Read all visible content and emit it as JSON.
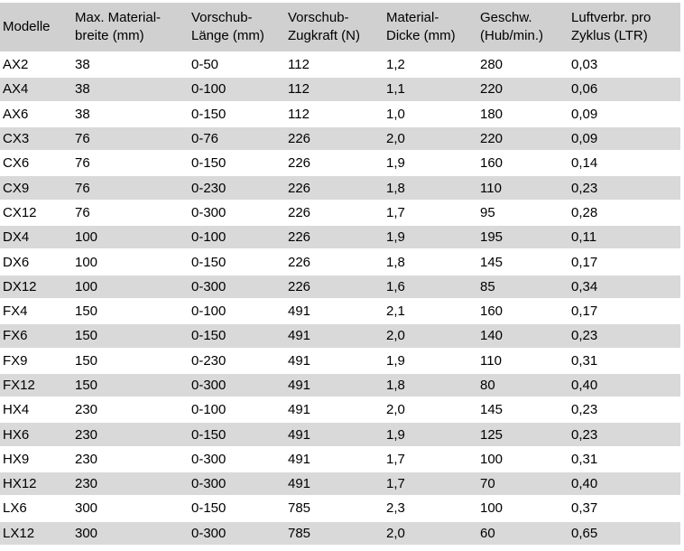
{
  "table": {
    "headers": [
      [
        "Modelle"
      ],
      [
        "Max. Material-",
        "breite (mm)"
      ],
      [
        "Vorschub-",
        "Länge (mm)"
      ],
      [
        "Vorschub-",
        "Zugkraft (N)"
      ],
      [
        "Material-",
        "Dicke (mm)"
      ],
      [
        "Geschw.",
        "(Hub/min.)"
      ],
      [
        "Luftverbr. pro",
        "Zyklus (LTR)"
      ]
    ],
    "rows": [
      [
        "AX2",
        "38",
        "0-50",
        "112",
        "1,2",
        "280",
        "0,03"
      ],
      [
        "AX4",
        "38",
        "0-100",
        "112",
        "1,1",
        "220",
        "0,06"
      ],
      [
        "AX6",
        "38",
        "0-150",
        "112",
        "1,0",
        "180",
        "0,09"
      ],
      [
        "CX3",
        "76",
        "0-76",
        "226",
        "2,0",
        "220",
        "0,09"
      ],
      [
        "CX6",
        "76",
        "0-150",
        "226",
        "1,9",
        "160",
        "0,14"
      ],
      [
        "CX9",
        "76",
        "0-230",
        "226",
        "1,8",
        "110",
        "0,23"
      ],
      [
        "CX12",
        "76",
        "0-300",
        "226",
        "1,7",
        "95",
        "0,28"
      ],
      [
        "DX4",
        "100",
        "0-100",
        "226",
        "1,9",
        "195",
        "0,11"
      ],
      [
        "DX6",
        "100",
        "0-150",
        "226",
        "1,8",
        "145",
        "0,17"
      ],
      [
        "DX12",
        "100",
        "0-300",
        "226",
        "1,6",
        "85",
        "0,34"
      ],
      [
        "FX4",
        "150",
        "0-100",
        "491",
        "2,1",
        "160",
        "0,17"
      ],
      [
        "FX6",
        "150",
        "0-150",
        "491",
        "2,0",
        "140",
        "0,23"
      ],
      [
        "FX9",
        "150",
        "0-230",
        "491",
        "1,9",
        "110",
        "0,31"
      ],
      [
        "FX12",
        "150",
        "0-300",
        "491",
        "1,8",
        "80",
        "0,40"
      ],
      [
        "HX4",
        "230",
        "0-100",
        "491",
        "2,0",
        "145",
        "0,23"
      ],
      [
        "HX6",
        "230",
        "0-150",
        "491",
        "1,9",
        "125",
        "0,23"
      ],
      [
        "HX9",
        "230",
        "0-300",
        "491",
        "1,7",
        "100",
        "0,31"
      ],
      [
        "HX12",
        "230",
        "0-300",
        "491",
        "1,7",
        "70",
        "0,40"
      ],
      [
        "LX6",
        "300",
        "0-150",
        "785",
        "2,3",
        "100",
        "0,37"
      ],
      [
        "LX12",
        "300",
        "0-300",
        "785",
        "2,0",
        "60",
        "0,65"
      ]
    ]
  },
  "colors": {
    "header_bg": "#d0d0d0",
    "stripe_bg": "#d9d9d9",
    "row_bg": "#ffffff"
  }
}
